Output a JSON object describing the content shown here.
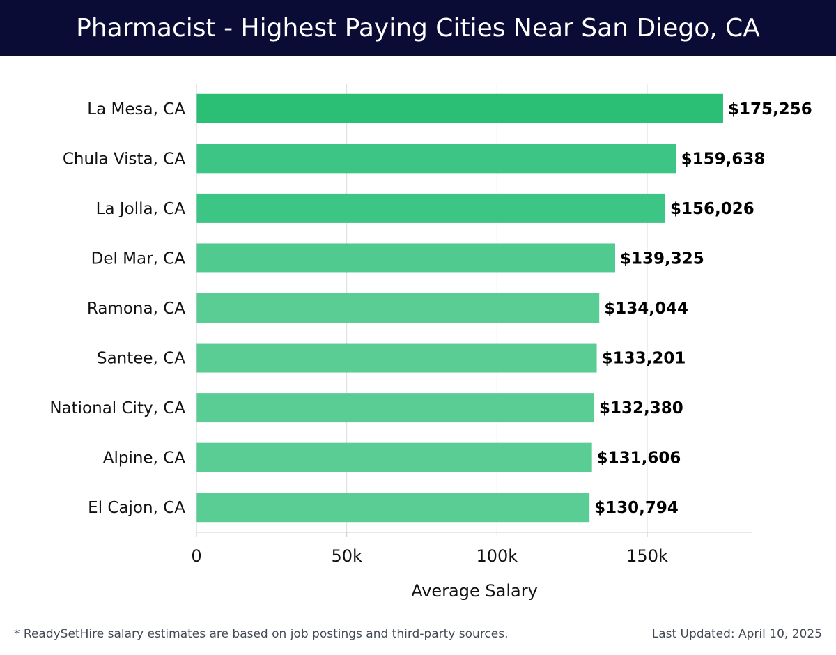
{
  "header": {
    "title": "Pharmacist - Highest Paying Cities Near San Diego, CA"
  },
  "chart_data": {
    "type": "bar",
    "orientation": "horizontal",
    "categories": [
      "La Mesa, CA",
      "Chula Vista, CA",
      "La Jolla, CA",
      "Del Mar, CA",
      "Ramona, CA",
      "Santee, CA",
      "National City, CA",
      "Alpine, CA",
      "El Cajon, CA"
    ],
    "values": [
      175256,
      159638,
      156026,
      139325,
      134044,
      133201,
      132380,
      131606,
      130794
    ],
    "value_labels": [
      "$175,256",
      "$159,638",
      "$156,026",
      "$139,325",
      "$134,044",
      "$133,201",
      "$132,380",
      "$131,606",
      "$130,794"
    ],
    "bar_colors": [
      "#2bbf76",
      "#3cc584",
      "#3cc584",
      "#51ca8f",
      "#5acd95",
      "#5acd95",
      "#5acd95",
      "#5acd95",
      "#5acd95"
    ],
    "xlabel": "Average Salary",
    "ylabel": "",
    "xlim": [
      0,
      185000
    ],
    "xticks": [
      0,
      50000,
      100000,
      150000
    ],
    "xtick_labels": [
      "0",
      "50k",
      "100k",
      "150k"
    ],
    "grid": "vertical",
    "legend": "none"
  },
  "footer": {
    "note": "* ReadySetHire salary estimates are based on job postings and third-party sources.",
    "updated": "Last Updated: April 10, 2025"
  }
}
